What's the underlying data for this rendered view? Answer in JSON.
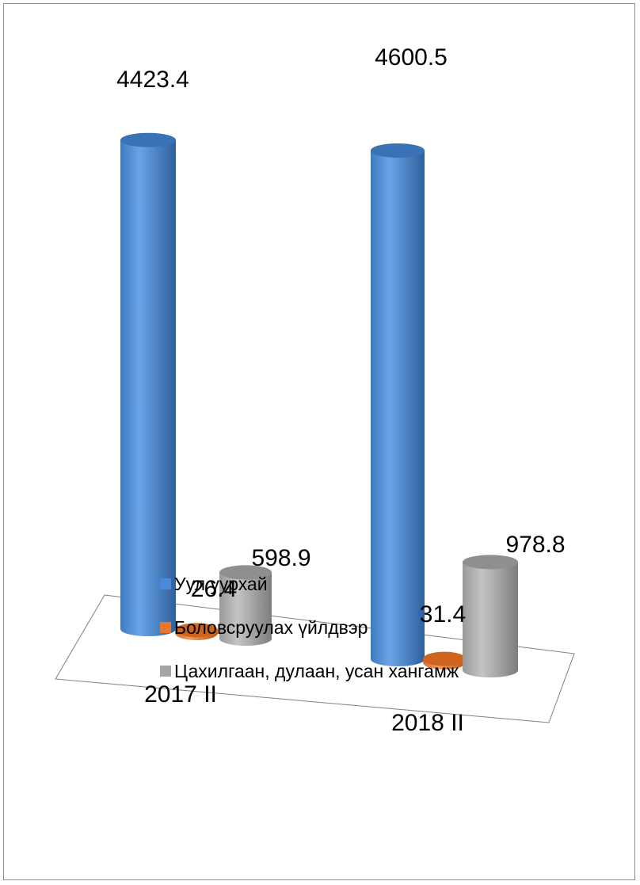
{
  "chart_data": {
    "type": "bar",
    "style": "3d-cylinder",
    "categories": [
      "2017 II",
      "2018 II"
    ],
    "series": [
      {
        "name": "Уул уурхай",
        "color": "#4a8ad4",
        "values": [
          4423.4,
          4600.5
        ],
        "labels": [
          "4423.4",
          "4600.5"
        ]
      },
      {
        "name": "Боловсруулах үйлдвэр",
        "color": "#e8772e",
        "values": [
          26.4,
          31.4
        ],
        "labels": [
          "26.4",
          "31.4"
        ]
      },
      {
        "name": "Цахилгаан, дулаан, усан хангамж",
        "color": "#a5a5a5",
        "values": [
          598.9,
          978.8
        ],
        "labels": [
          "598.9",
          "978.8"
        ]
      }
    ],
    "legend": "bottom",
    "grid": false
  }
}
